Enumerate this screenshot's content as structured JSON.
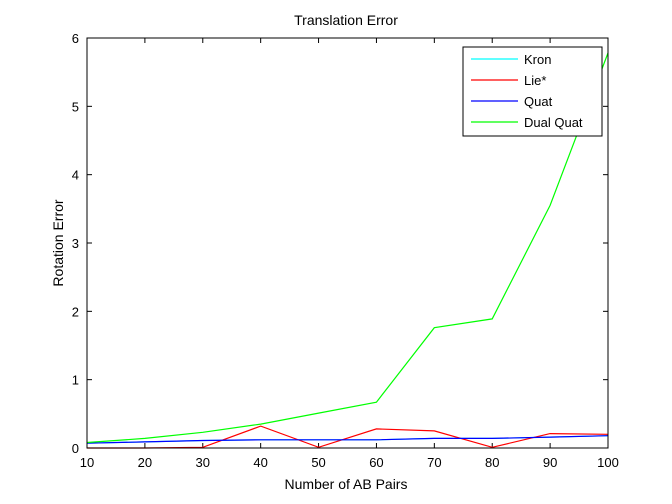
{
  "chart_data": {
    "type": "line",
    "title": "Translation Error",
    "xlabel": "Number of AB Pairs",
    "ylabel": "Rotation Error",
    "xlim": [
      10,
      100
    ],
    "ylim": [
      0,
      6
    ],
    "x_ticks": [
      "10",
      "20",
      "30",
      "40",
      "50",
      "60",
      "70",
      "80",
      "90",
      "100"
    ],
    "y_ticks": [
      "0",
      "1",
      "2",
      "3",
      "4",
      "5",
      "6"
    ],
    "grid": false,
    "legend_position": "top-right",
    "x": [
      10,
      20,
      30,
      40,
      50,
      60,
      70,
      80,
      90,
      100
    ],
    "series": [
      {
        "name": "Kron",
        "color": "#00ffff",
        "values": [
          0.07,
          0.09,
          0.11,
          0.12,
          0.12,
          0.12,
          0.14,
          0.14,
          0.16,
          0.18
        ]
      },
      {
        "name": "Lie*",
        "color": "#ff0000",
        "values": [
          0.0,
          0.0,
          0.01,
          0.32,
          0.01,
          0.28,
          0.25,
          0.01,
          0.21,
          0.2
        ]
      },
      {
        "name": "Quat",
        "color": "#0000ff",
        "values": [
          0.07,
          0.09,
          0.11,
          0.12,
          0.12,
          0.12,
          0.14,
          0.14,
          0.16,
          0.18
        ]
      },
      {
        "name": "Dual Quat",
        "color": "#00ff00",
        "values": [
          0.08,
          0.14,
          0.23,
          0.35,
          0.51,
          0.67,
          1.76,
          1.89,
          3.55,
          5.78
        ]
      }
    ]
  }
}
